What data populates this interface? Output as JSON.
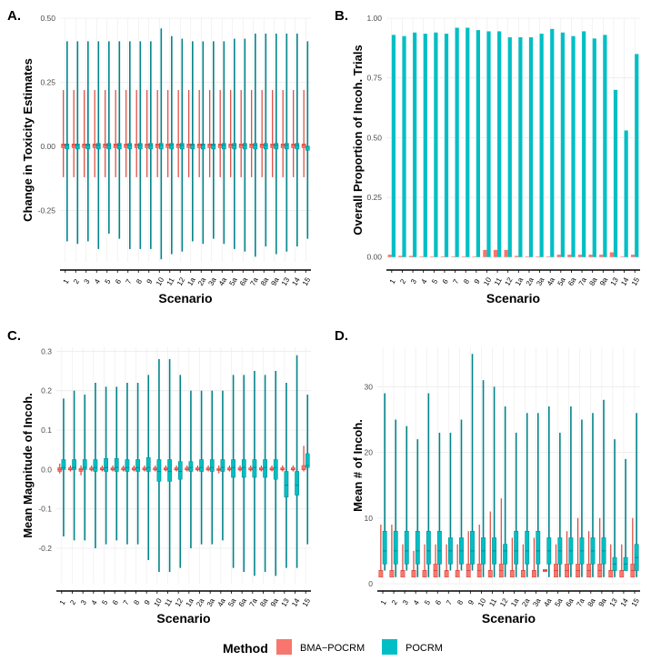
{
  "colors": {
    "bma": "#F8766D",
    "pocrm": "#00BFC4",
    "bma_line": "#D9453A",
    "pocrm_line": "#00848A",
    "grid": "#EBEBEB",
    "axis": "#000000",
    "tick_text": "#4D4D4D"
  },
  "legend": {
    "title": "Method",
    "items": [
      {
        "label": "BMA−POCRM",
        "color": "#F8766D"
      },
      {
        "label": "POCRM",
        "color": "#00BFC4"
      }
    ]
  },
  "chart_data": [
    {
      "panel": "A.",
      "type": "boxplot",
      "xlabel": "Scenario",
      "ylabel": "Change in Toxicity Estimates",
      "ylim": [
        -0.45,
        0.5
      ],
      "yticks": [
        -0.25,
        0.0,
        0.25,
        0.5
      ],
      "ytick_labels": [
        "-0.25",
        "0.00",
        "0.25",
        "0.50"
      ],
      "categories": [
        "1",
        "2",
        "3",
        "4",
        "5",
        "6",
        "7",
        "8",
        "9",
        "10",
        "11",
        "12",
        "1a",
        "2a",
        "3a",
        "4a",
        "5a",
        "6a",
        "7a",
        "8a",
        "9a",
        "13",
        "14",
        "15"
      ],
      "series": [
        {
          "name": "BMA−POCRM",
          "min": [
            -0.12,
            -0.12,
            -0.12,
            -0.12,
            -0.12,
            -0.12,
            -0.12,
            -0.12,
            -0.12,
            -0.12,
            -0.12,
            -0.12,
            -0.12,
            -0.12,
            -0.12,
            -0.12,
            -0.12,
            -0.12,
            -0.12,
            -0.12,
            -0.12,
            -0.12,
            -0.12,
            -0.12
          ],
          "q1": [
            -0.005,
            -0.005,
            -0.005,
            -0.005,
            -0.005,
            -0.005,
            -0.005,
            -0.005,
            -0.005,
            -0.005,
            -0.005,
            -0.005,
            -0.005,
            -0.005,
            -0.005,
            -0.005,
            -0.005,
            -0.005,
            -0.005,
            -0.005,
            -0.005,
            -0.005,
            -0.005,
            -0.005
          ],
          "median": [
            0.005,
            0.005,
            0.005,
            0.005,
            0.005,
            0.005,
            0.005,
            0.005,
            0.005,
            0.005,
            0.005,
            0.005,
            0.005,
            0.005,
            0.005,
            0.005,
            0.005,
            0.005,
            0.005,
            0.005,
            0.005,
            0.005,
            0.005,
            0.005
          ],
          "q3": [
            0.01,
            0.01,
            0.01,
            0.01,
            0.01,
            0.01,
            0.01,
            0.01,
            0.01,
            0.01,
            0.01,
            0.01,
            0.01,
            0.01,
            0.01,
            0.01,
            0.01,
            0.01,
            0.01,
            0.01,
            0.01,
            0.01,
            0.01,
            0.01
          ],
          "max": [
            0.22,
            0.22,
            0.22,
            0.22,
            0.22,
            0.22,
            0.22,
            0.22,
            0.22,
            0.22,
            0.22,
            0.22,
            0.22,
            0.22,
            0.22,
            0.22,
            0.22,
            0.22,
            0.22,
            0.22,
            0.22,
            0.22,
            0.22,
            0.22
          ]
        },
        {
          "name": "POCRM",
          "min": [
            -0.37,
            -0.38,
            -0.37,
            -0.4,
            -0.34,
            -0.36,
            -0.4,
            -0.4,
            -0.4,
            -0.44,
            -0.42,
            -0.41,
            -0.37,
            -0.38,
            -0.36,
            -0.38,
            -0.4,
            -0.41,
            -0.43,
            -0.39,
            -0.42,
            -0.41,
            -0.39,
            -0.36
          ],
          "q1": [
            -0.01,
            -0.01,
            -0.01,
            -0.01,
            -0.01,
            -0.01,
            -0.01,
            -0.01,
            -0.01,
            -0.01,
            -0.01,
            -0.01,
            -0.01,
            -0.01,
            -0.01,
            -0.01,
            -0.01,
            -0.01,
            -0.01,
            -0.01,
            -0.01,
            -0.01,
            -0.01,
            -0.015
          ],
          "median": [
            0.005,
            0.005,
            0.005,
            0.005,
            0.005,
            0.005,
            0.005,
            0.005,
            0.005,
            0.005,
            0.005,
            0.005,
            0.005,
            0.005,
            0.005,
            0.005,
            0.005,
            0.005,
            0.005,
            0.005,
            0.005,
            0.005,
            0.005,
            0.0
          ],
          "q3": [
            0.01,
            0.01,
            0.01,
            0.012,
            0.012,
            0.012,
            0.012,
            0.012,
            0.012,
            0.012,
            0.012,
            0.012,
            0.01,
            0.01,
            0.01,
            0.012,
            0.012,
            0.012,
            0.012,
            0.012,
            0.012,
            0.012,
            0.012,
            0.0
          ],
          "max": [
            0.41,
            0.41,
            0.41,
            0.41,
            0.41,
            0.41,
            0.41,
            0.41,
            0.41,
            0.46,
            0.43,
            0.42,
            0.41,
            0.41,
            0.41,
            0.41,
            0.42,
            0.42,
            0.44,
            0.44,
            0.44,
            0.44,
            0.44,
            0.41
          ]
        }
      ]
    },
    {
      "panel": "B.",
      "type": "bar",
      "xlabel": "Scenario",
      "ylabel": "Overall Proportion of Incoh. Trials",
      "ylim": [
        -0.02,
        1.0
      ],
      "yticks": [
        0.0,
        0.25,
        0.5,
        0.75,
        1.0
      ],
      "ytick_labels": [
        "0.00",
        "0.25",
        "0.50",
        "0.75",
        "1.00"
      ],
      "categories": [
        "1",
        "2",
        "3",
        "4",
        "5",
        "6",
        "7",
        "8",
        "9",
        "10",
        "11",
        "12",
        "1a",
        "2a",
        "3a",
        "4a",
        "5a",
        "6a",
        "7a",
        "8a",
        "9a",
        "13",
        "14",
        "15"
      ],
      "series": [
        {
          "name": "BMA−POCRM",
          "values": [
            0.01,
            0.005,
            0.005,
            0.0,
            0.0,
            0.0,
            0.0,
            0.0,
            0.0,
            0.03,
            0.03,
            0.03,
            0.005,
            0.0,
            0.0,
            0.0,
            0.01,
            0.01,
            0.01,
            0.01,
            0.01,
            0.02,
            0.0,
            0.01
          ]
        },
        {
          "name": "POCRM",
          "values": [
            0.93,
            0.925,
            0.94,
            0.935,
            0.94,
            0.935,
            0.96,
            0.96,
            0.95,
            0.945,
            0.945,
            0.92,
            0.92,
            0.92,
            0.935,
            0.955,
            0.94,
            0.925,
            0.945,
            0.915,
            0.93,
            0.7,
            0.53,
            0.85
          ]
        }
      ]
    },
    {
      "panel": "C.",
      "type": "boxplot",
      "xlabel": "Scenario",
      "ylabel": "Mean Magnitude of Incoh.",
      "ylim": [
        -0.29,
        0.31
      ],
      "yticks": [
        -0.2,
        -0.1,
        0.0,
        0.1,
        0.2,
        0.3
      ],
      "ytick_labels": [
        "-0.2",
        "-0.1",
        "0.0",
        "0.1",
        "0.2",
        "0.3"
      ],
      "categories": [
        "1",
        "2",
        "3",
        "4",
        "5",
        "6",
        "7",
        "8",
        "9",
        "10",
        "11",
        "12",
        "1a",
        "2a",
        "3a",
        "4a",
        "5a",
        "6a",
        "7a",
        "8a",
        "9a",
        "13",
        "14",
        "15"
      ],
      "series": [
        {
          "name": "BMA−POCRM",
          "min": [
            -0.01,
            -0.005,
            -0.015,
            -0.005,
            -0.005,
            -0.005,
            -0.005,
            -0.005,
            -0.005,
            -0.005,
            -0.005,
            -0.005,
            -0.005,
            -0.005,
            -0.005,
            -0.01,
            -0.005,
            -0.005,
            -0.005,
            -0.005,
            -0.005,
            -0.005,
            -0.005,
            -0.005
          ],
          "q1": [
            -0.005,
            0.0,
            -0.005,
            0.0,
            0.0,
            0.0,
            0.0,
            0.0,
            0.0,
            0.0,
            0.0,
            0.0,
            0.0,
            0.0,
            0.0,
            -0.003,
            0.0,
            0.0,
            0.0,
            0.0,
            0.0,
            0.0,
            0.0,
            0.0
          ],
          "median": [
            0.0,
            0.0,
            0.0,
            0.0,
            0.0,
            0.0,
            0.0,
            0.0,
            0.0,
            0.0,
            0.0,
            0.0,
            0.0,
            0.0,
            0.0,
            0.0,
            0.0,
            0.0,
            0.0,
            0.0,
            0.0,
            0.0,
            0.0,
            0.0
          ],
          "q3": [
            0.005,
            0.003,
            0.003,
            0.003,
            0.003,
            0.003,
            0.003,
            0.003,
            0.003,
            0.003,
            0.003,
            0.003,
            0.003,
            0.003,
            0.003,
            0.003,
            0.003,
            0.003,
            0.003,
            0.003,
            0.003,
            0.003,
            0.003,
            0.01
          ],
          "max": [
            0.015,
            0.01,
            0.01,
            0.01,
            0.01,
            0.01,
            0.01,
            0.01,
            0.01,
            0.01,
            0.01,
            0.01,
            0.01,
            0.01,
            0.01,
            0.01,
            0.01,
            0.01,
            0.01,
            0.01,
            0.01,
            0.01,
            0.01,
            0.06
          ]
        },
        {
          "name": "POCRM",
          "min": [
            -0.17,
            -0.18,
            -0.18,
            -0.2,
            -0.19,
            -0.18,
            -0.19,
            -0.19,
            -0.23,
            -0.26,
            -0.26,
            -0.25,
            -0.2,
            -0.19,
            -0.19,
            -0.18,
            -0.25,
            -0.26,
            -0.27,
            -0.26,
            -0.27,
            -0.25,
            -0.25,
            -0.19
          ],
          "q1": [
            0.0,
            0.0,
            0.0,
            -0.005,
            -0.005,
            -0.005,
            -0.005,
            -0.005,
            -0.005,
            -0.03,
            -0.03,
            -0.025,
            -0.005,
            -0.005,
            -0.005,
            -0.005,
            -0.02,
            -0.02,
            -0.02,
            -0.02,
            -0.025,
            -0.07,
            -0.065,
            0.005
          ],
          "median": [
            0.005,
            0.005,
            0.005,
            0.005,
            0.005,
            0.005,
            0.005,
            0.005,
            0.005,
            -0.005,
            -0.005,
            -0.005,
            0.005,
            0.005,
            0.005,
            0.005,
            0.005,
            0.005,
            0.005,
            0.005,
            0.005,
            -0.04,
            -0.04,
            0.01
          ],
          "q3": [
            0.025,
            0.025,
            0.025,
            0.025,
            0.028,
            0.028,
            0.025,
            0.025,
            0.03,
            0.025,
            0.025,
            0.02,
            0.02,
            0.025,
            0.025,
            0.025,
            0.025,
            0.025,
            0.025,
            0.025,
            0.025,
            -0.005,
            -0.005,
            0.04
          ],
          "max": [
            0.18,
            0.2,
            0.19,
            0.22,
            0.21,
            0.21,
            0.22,
            0.22,
            0.24,
            0.28,
            0.28,
            0.24,
            0.2,
            0.2,
            0.2,
            0.2,
            0.24,
            0.24,
            0.25,
            0.24,
            0.25,
            0.22,
            0.29,
            0.19
          ]
        }
      ]
    },
    {
      "panel": "D.",
      "type": "boxplot",
      "xlabel": "Scenario",
      "ylabel": "Mean # of Incoh.",
      "ylim": [
        0,
        36
      ],
      "yticks": [
        0,
        10,
        20,
        30
      ],
      "ytick_labels": [
        "0",
        "10",
        "20",
        "30"
      ],
      "categories": [
        "1",
        "2",
        "3",
        "4",
        "5",
        "6",
        "7",
        "8",
        "9",
        "10",
        "11",
        "12",
        "1a",
        "2a",
        "3a",
        "4a",
        "5a",
        "6a",
        "7a",
        "8a",
        "9a",
        "13",
        "14",
        "15"
      ],
      "series": [
        {
          "name": "BMA−POCRM",
          "min": [
            1,
            1,
            1,
            1,
            1,
            1,
            1,
            1,
            1,
            1,
            1,
            1,
            1,
            1,
            1,
            2,
            1,
            1,
            1,
            1,
            1,
            1,
            1,
            1
          ],
          "q1": [
            1,
            1,
            1,
            1,
            1,
            1,
            1,
            1,
            1,
            1,
            1,
            1,
            1,
            1,
            1,
            2,
            1,
            1,
            1,
            1,
            1,
            1,
            1,
            1
          ],
          "median": [
            2,
            2,
            2,
            2,
            2,
            2,
            2,
            2,
            2,
            2,
            2,
            2,
            2,
            2,
            2,
            2,
            2,
            2,
            2,
            2,
            2,
            2,
            2,
            2
          ],
          "q3": [
            2,
            2,
            2,
            2,
            2,
            3,
            2,
            2,
            3,
            3,
            2,
            3,
            2,
            2,
            2,
            2,
            3,
            3,
            3,
            3,
            3,
            2,
            2,
            3
          ],
          "max": [
            9,
            9,
            6,
            5,
            6,
            6,
            6,
            6,
            8,
            9,
            11,
            13,
            7,
            6,
            7,
            2,
            6,
            8,
            10,
            8,
            10,
            6,
            6,
            10
          ]
        },
        {
          "name": "POCRM",
          "min": [
            2,
            1,
            2,
            1,
            1,
            1,
            2,
            2,
            2,
            1,
            1,
            1,
            1,
            1,
            1,
            1,
            1,
            1,
            1,
            1,
            1,
            1,
            2,
            1
          ],
          "q1": [
            3,
            3,
            3,
            3,
            3,
            3,
            3,
            3,
            3,
            3,
            3,
            3,
            3,
            3,
            3,
            3,
            3,
            3,
            3,
            3,
            3,
            2,
            2,
            2
          ],
          "median": [
            5,
            5,
            5,
            5,
            5,
            5,
            5,
            5,
            5,
            5,
            5,
            5,
            5,
            5,
            5,
            5,
            5,
            5,
            5,
            5,
            5,
            3,
            3,
            4
          ],
          "q3": [
            8,
            8,
            8,
            8,
            8,
            8,
            7,
            7,
            8,
            7,
            7,
            6,
            8,
            8,
            8,
            7,
            7,
            7,
            7,
            7,
            7,
            4,
            4,
            6
          ],
          "max": [
            29,
            25,
            24,
            22,
            29,
            23,
            23,
            25,
            35,
            31,
            30,
            27,
            23,
            26,
            26,
            27,
            23,
            27,
            25,
            26,
            28,
            22,
            19,
            26
          ]
        }
      ]
    }
  ]
}
